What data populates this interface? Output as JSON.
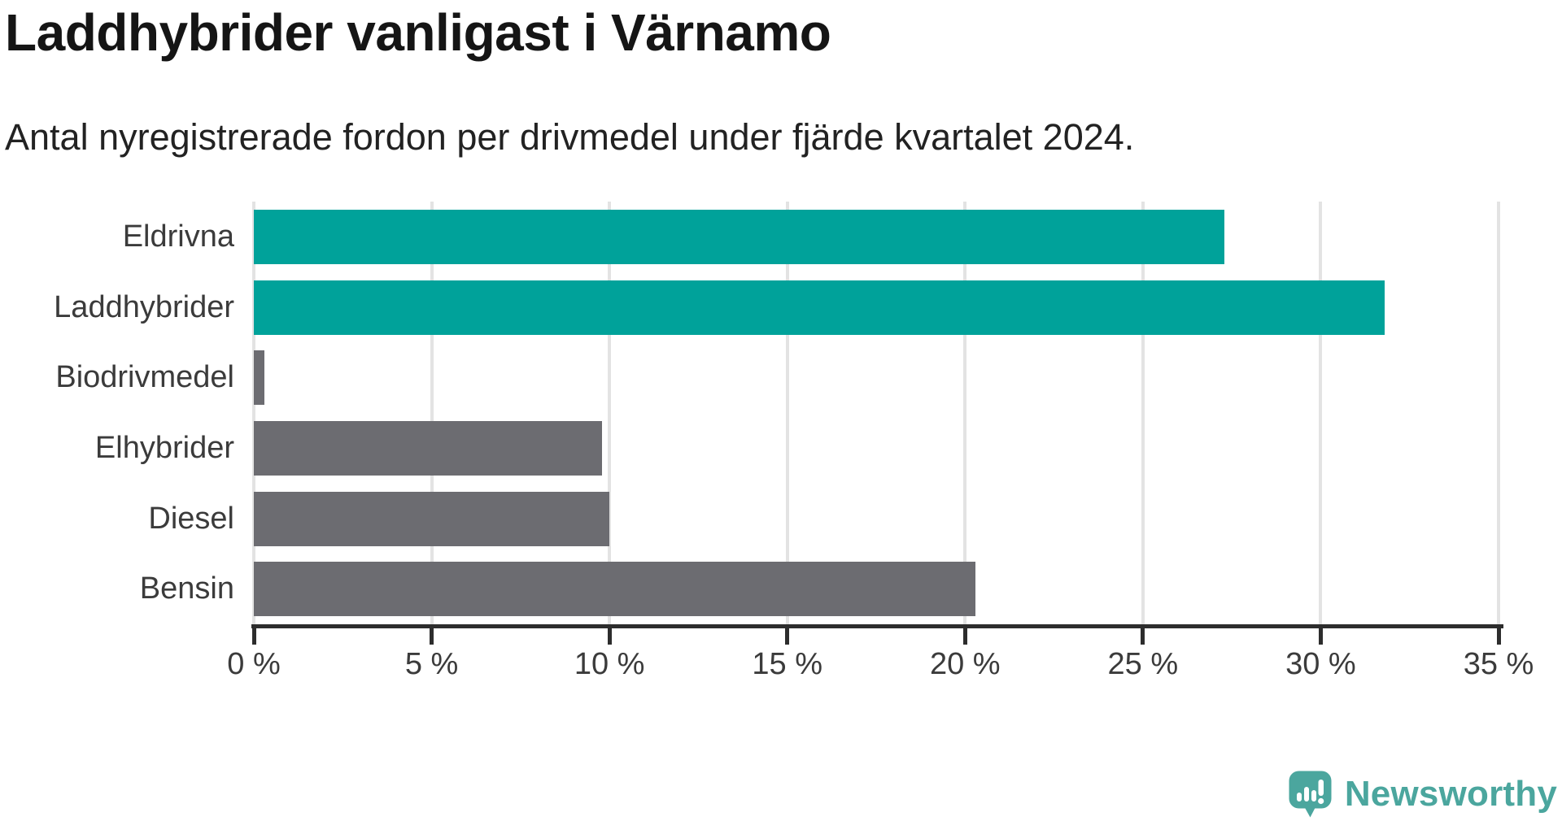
{
  "chart_data": {
    "type": "bar",
    "orientation": "horizontal",
    "title": "Laddhybrider vanligast i Värnamo",
    "subtitle": "Antal nyregistrerade fordon per drivmedel under fjärde kvartalet 2024.",
    "categories": [
      "Eldrivna",
      "Laddhybrider",
      "Biodrivmedel",
      "Elhybrider",
      "Diesel",
      "Bensin"
    ],
    "values": [
      27.3,
      31.8,
      0.3,
      9.8,
      10.0,
      20.3
    ],
    "unit": "%",
    "highlighted": [
      true,
      true,
      false,
      false,
      false,
      false
    ],
    "xlim": [
      0,
      35
    ],
    "xticks": [
      0,
      5,
      10,
      15,
      20,
      25,
      30,
      35
    ],
    "xtick_labels": [
      "0 %",
      "5 %",
      "10 %",
      "15 %",
      "20 %",
      "25 %",
      "30 %",
      "35 %"
    ],
    "grid": true,
    "legend": "none",
    "colors": {
      "highlight": "#00a29a",
      "default": "#6c6c71",
      "axis": "#2d2d2d",
      "gridline": "#e3e3e3",
      "label_text": "#3b3b3b"
    }
  },
  "branding": {
    "logo_text": "Newsworthy",
    "logo_color": "#4ba69e"
  }
}
